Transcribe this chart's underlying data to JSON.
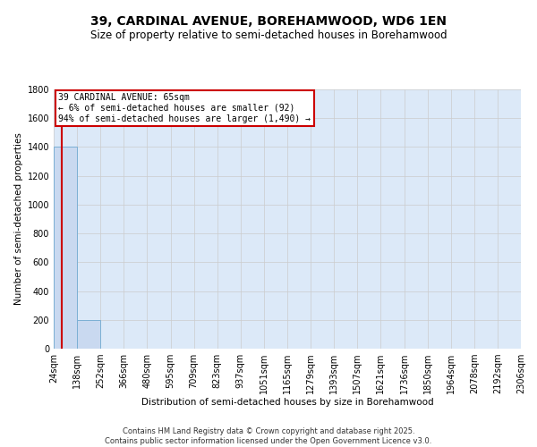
{
  "title": "39, CARDINAL AVENUE, BOREHAMWOOD, WD6 1EN",
  "subtitle": "Size of property relative to semi-detached houses in Borehamwood",
  "xlabel": "Distribution of semi-detached houses by size in Borehamwood",
  "ylabel": "Number of semi-detached properties",
  "footer": "Contains HM Land Registry data © Crown copyright and database right 2025.\nContains public sector information licensed under the Open Government Licence v3.0.",
  "annotation_title": "39 CARDINAL AVENUE: 65sqm",
  "annotation_line2": "← 6% of semi-detached houses are smaller (92)",
  "annotation_line3": "94% of semi-detached houses are larger (1,490) →",
  "bar_values": [
    1400,
    200,
    0,
    0,
    0,
    0,
    0,
    0,
    0,
    0,
    0,
    0,
    0,
    0,
    0,
    0,
    0,
    0,
    0,
    0
  ],
  "bin_labels": [
    "24sqm",
    "138sqm",
    "252sqm",
    "366sqm",
    "480sqm",
    "595sqm",
    "709sqm",
    "823sqm",
    "937sqm",
    "1051sqm",
    "1165sqm",
    "1279sqm",
    "1393sqm",
    "1507sqm",
    "1621sqm",
    "1736sqm",
    "1850sqm",
    "1964sqm",
    "2078sqm",
    "2192sqm",
    "2306sqm"
  ],
  "bar_color": "#c9d9f0",
  "bar_edge_color": "#7bafd4",
  "grid_color": "#cccccc",
  "background_color": "#dce9f8",
  "vline_color": "#cc0000",
  "annotation_box_color": "#cc0000",
  "ylim": [
    0,
    1800
  ],
  "yticks": [
    0,
    200,
    400,
    600,
    800,
    1000,
    1200,
    1400,
    1600,
    1800
  ],
  "title_fontsize": 10,
  "subtitle_fontsize": 8.5,
  "ylabel_fontsize": 7.5,
  "xlabel_fontsize": 7.5,
  "tick_fontsize": 7,
  "annotation_fontsize": 7,
  "footer_fontsize": 6
}
